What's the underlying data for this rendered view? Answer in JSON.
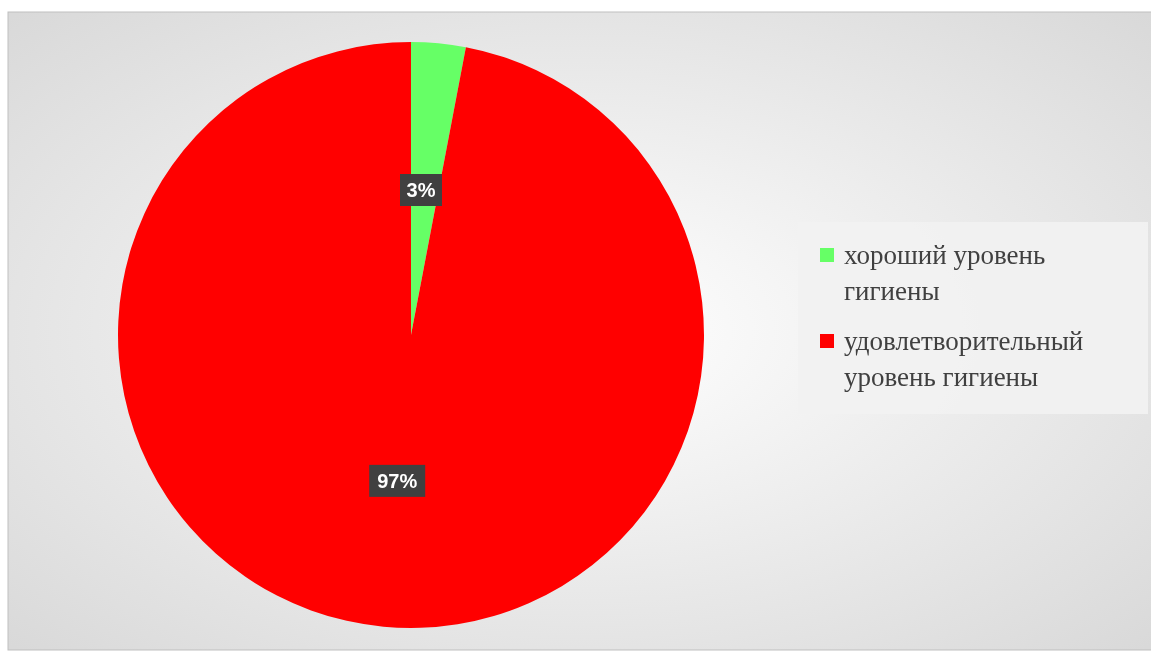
{
  "chart_data": {
    "type": "pie",
    "categories": [
      "хороший уровень гигиены",
      "удовлетворительный уровень гигиены"
    ],
    "values": [
      3,
      97
    ],
    "colors": [
      "#66ff66",
      "#ff0000"
    ],
    "value_labels": [
      "3%",
      "97%"
    ],
    "legend": "right"
  }
}
